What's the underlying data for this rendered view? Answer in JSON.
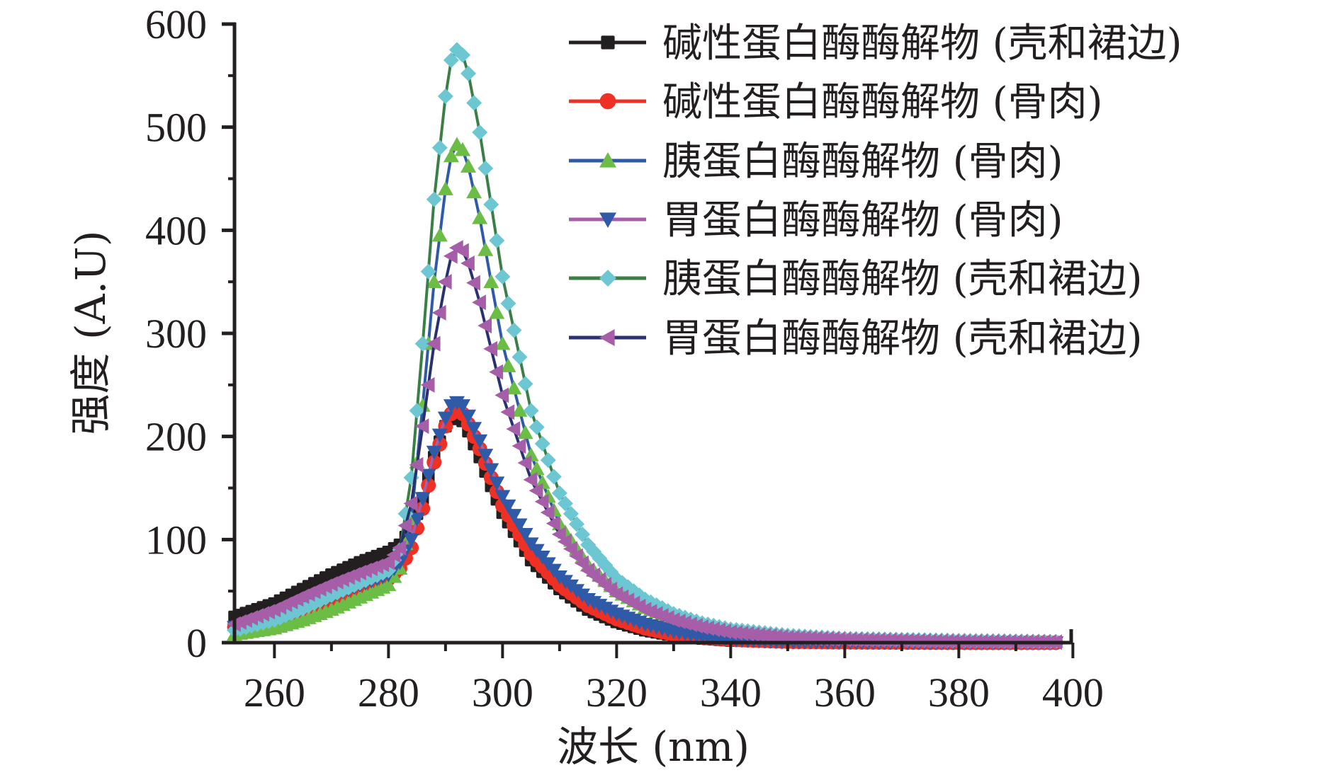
{
  "chart_data": {
    "type": "line",
    "title": "",
    "xlabel": "波长 (nm)",
    "ylabel": "强度 (A.U)",
    "xlim": [
      253,
      400
    ],
    "ylim": [
      0,
      600
    ],
    "x_ticks": [
      260,
      280,
      300,
      320,
      340,
      360,
      380,
      400
    ],
    "x_tick_labels": [
      "260",
      "280",
      "300",
      "320",
      "340",
      "360",
      "380",
      "400"
    ],
    "y_ticks": [
      0,
      100,
      200,
      300,
      400,
      500,
      600
    ],
    "y_tick_labels": [
      "0",
      "100",
      "200",
      "300",
      "400",
      "500",
      "600"
    ],
    "grid": false,
    "legend_position": "top-right",
    "marker_step_nm": 1,
    "series": [
      {
        "name": "碱性蛋白酶酶解物 (壳和裙边)",
        "line_color": "#231f20",
        "marker_color": "#231f20",
        "marker": "square",
        "x": [
          253,
          260,
          265,
          270,
          275,
          280,
          282,
          284,
          286,
          288,
          290,
          291,
          292,
          293,
          294,
          296,
          298,
          300,
          305,
          310,
          315,
          320,
          325,
          330,
          335,
          340,
          350,
          360,
          380,
          397
        ],
        "y": [
          25,
          38,
          52,
          66,
          78,
          88,
          95,
          110,
          140,
          180,
          210,
          217,
          219,
          215,
          205,
          180,
          152,
          126,
          80,
          52,
          32,
          20,
          12,
          7,
          4,
          2,
          1,
          0.5,
          0,
          0
        ]
      },
      {
        "name": "碱性蛋白酶酶解物 (骨肉)",
        "line_color": "#ee3124",
        "marker_color": "#ee3124",
        "marker": "circle",
        "x": [
          253,
          260,
          265,
          270,
          275,
          280,
          282,
          284,
          286,
          288,
          290,
          291,
          292,
          293,
          294,
          296,
          298,
          300,
          305,
          310,
          315,
          320,
          325,
          330,
          335,
          340,
          350,
          360,
          380,
          397
        ],
        "y": [
          15,
          22,
          31,
          41,
          52,
          62,
          72,
          92,
          130,
          175,
          210,
          222,
          226,
          222,
          212,
          188,
          160,
          133,
          86,
          56,
          36,
          23,
          14,
          8,
          5,
          3,
          1,
          0.5,
          0,
          0
        ]
      },
      {
        "name": "胰蛋白酶酶解物 (骨肉)",
        "line_color": "#2e5aa8",
        "marker_color": "#6cbd45",
        "marker": "triangle-up",
        "x": [
          253,
          260,
          265,
          270,
          275,
          280,
          282,
          284,
          286,
          288,
          290,
          291,
          292,
          293,
          294,
          296,
          298,
          300,
          305,
          310,
          315,
          320,
          325,
          330,
          335,
          340,
          350,
          360,
          380,
          397
        ],
        "y": [
          8,
          14,
          22,
          32,
          44,
          56,
          72,
          120,
          230,
          350,
          440,
          472,
          483,
          478,
          462,
          412,
          350,
          290,
          182,
          115,
          75,
          50,
          34,
          23,
          16,
          11,
          6,
          4,
          2,
          1
        ]
      },
      {
        "name": "胃蛋白酶酶解物 (骨肉)",
        "line_color": "#a65ea8",
        "marker_color": "#2e5aa8",
        "marker": "triangle-down",
        "x": [
          253,
          260,
          265,
          270,
          275,
          280,
          282,
          284,
          286,
          288,
          290,
          291,
          292,
          293,
          294,
          296,
          298,
          300,
          305,
          310,
          315,
          320,
          325,
          330,
          335,
          340,
          350,
          360,
          380,
          397
        ],
        "y": [
          15,
          24,
          34,
          45,
          56,
          66,
          78,
          100,
          140,
          185,
          218,
          230,
          233,
          230,
          220,
          196,
          168,
          142,
          96,
          64,
          42,
          28,
          18,
          11,
          6,
          3,
          1,
          0.5,
          0,
          0
        ]
      },
      {
        "name": "胰蛋白酶酶解物 (壳和裙边)",
        "line_color": "#3a7f45",
        "marker_color": "#6cc7d2",
        "marker": "diamond",
        "x": [
          253,
          260,
          265,
          270,
          275,
          280,
          282,
          284,
          286,
          288,
          290,
          291,
          292,
          293,
          294,
          296,
          298,
          300,
          305,
          310,
          315,
          320,
          325,
          330,
          335,
          340,
          350,
          360,
          380,
          397
        ],
        "y": [
          12,
          22,
          33,
          46,
          58,
          70,
          90,
          160,
          290,
          430,
          530,
          565,
          575,
          570,
          552,
          495,
          425,
          355,
          225,
          145,
          95,
          62,
          42,
          28,
          19,
          13,
          7,
          4,
          2,
          1
        ]
      },
      {
        "name": "胃蛋白酶酶解物 (壳和裙边)",
        "line_color": "#2b3170",
        "marker_color": "#a65ea8",
        "marker": "triangle-left",
        "x": [
          253,
          260,
          265,
          270,
          275,
          280,
          282,
          284,
          286,
          288,
          290,
          291,
          292,
          293,
          294,
          296,
          298,
          300,
          305,
          310,
          315,
          320,
          325,
          330,
          335,
          340,
          350,
          360,
          380,
          397
        ],
        "y": [
          18,
          32,
          45,
          57,
          68,
          78,
          92,
          135,
          210,
          290,
          350,
          375,
          383,
          380,
          368,
          330,
          285,
          240,
          158,
          105,
          70,
          47,
          32,
          22,
          15,
          10,
          5,
          3,
          1,
          0.5
        ]
      }
    ]
  }
}
